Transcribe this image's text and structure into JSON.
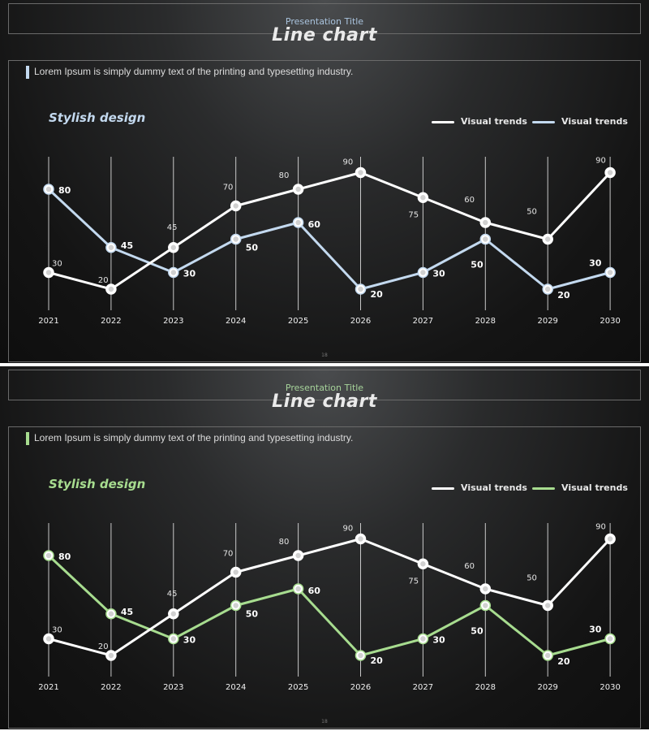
{
  "slides": [
    {
      "presentation_title": "Presentation Title",
      "title": "Line chart",
      "description": "Lorem Ipsum is simply  dummy text of the printing  and typesetting industry.",
      "subtitle": "Stylish design",
      "page_number": "18",
      "accent_color": "#c3d9ef",
      "series_colors": [
        "#ffffff",
        "#c3d9ef"
      ]
    },
    {
      "presentation_title": "Presentation Title",
      "title": "Line chart",
      "description": "Lorem Ipsum is simply  dummy text of the printing  and typesetting industry.",
      "subtitle": "Stylish design",
      "page_number": "18",
      "accent_color": "#a7dc8f",
      "series_colors": [
        "#ffffff",
        "#a7dc8f"
      ]
    }
  ],
  "chart_data": [
    {
      "type": "line",
      "title": "Stylish design",
      "categories": [
        "2021",
        "2022",
        "2023",
        "2024",
        "2025",
        "2026",
        "2027",
        "2028",
        "2029",
        "2030"
      ],
      "series": [
        {
          "name": "Visual trends",
          "values": [
            30,
            20,
            45,
            70,
            80,
            90,
            75,
            60,
            50,
            90
          ]
        },
        {
          "name": "Visual trends",
          "values": [
            80,
            45,
            30,
            50,
            60,
            20,
            30,
            50,
            20,
            30
          ]
        }
      ],
      "ylim": [
        0,
        100
      ],
      "grid": "vertical",
      "legend": "top-right"
    },
    {
      "type": "line",
      "title": "Stylish design",
      "categories": [
        "2021",
        "2022",
        "2023",
        "2024",
        "2025",
        "2026",
        "2027",
        "2028",
        "2029",
        "2030"
      ],
      "series": [
        {
          "name": "Visual trends",
          "values": [
            30,
            20,
            45,
            70,
            80,
            90,
            75,
            60,
            50,
            90
          ]
        },
        {
          "name": "Visual trends",
          "values": [
            80,
            45,
            30,
            50,
            60,
            20,
            30,
            50,
            20,
            30
          ]
        }
      ],
      "ylim": [
        0,
        100
      ],
      "grid": "vertical",
      "legend": "top-right"
    }
  ]
}
